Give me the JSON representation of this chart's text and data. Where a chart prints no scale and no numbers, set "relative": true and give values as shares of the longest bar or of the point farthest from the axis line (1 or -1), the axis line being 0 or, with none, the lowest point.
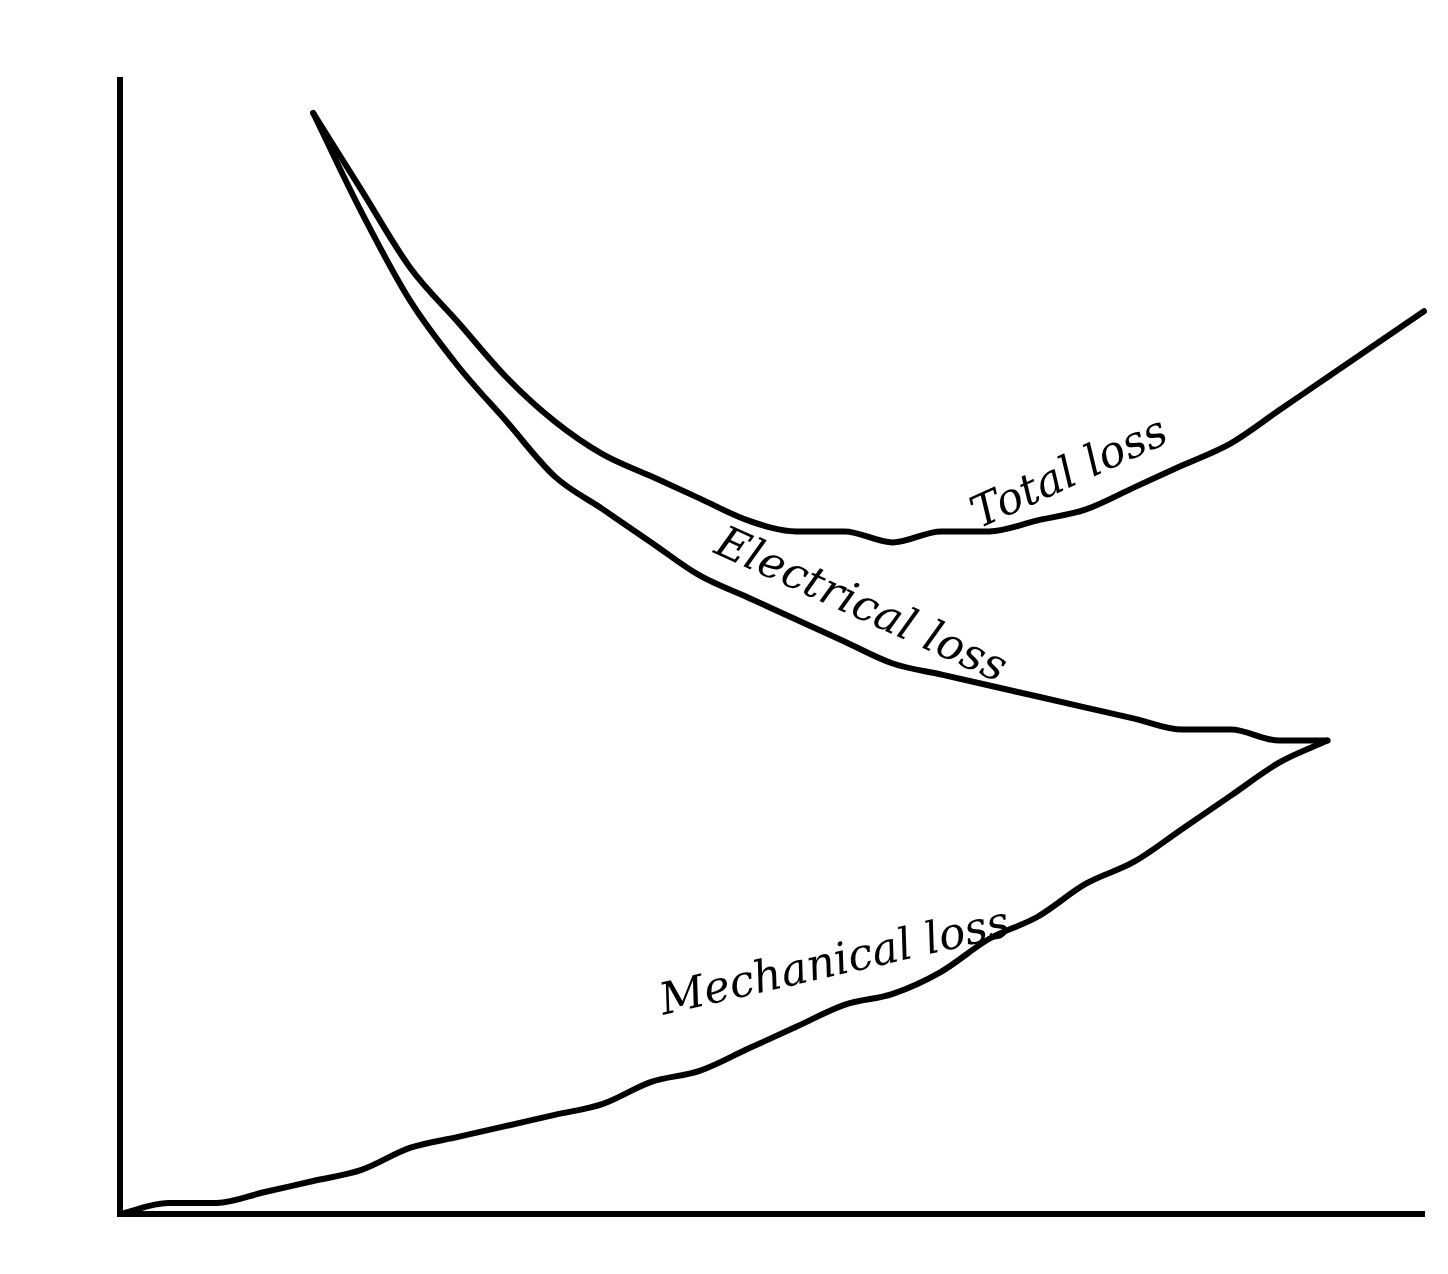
{
  "chart_data": {
    "type": "line",
    "relative": true,
    "grid": false,
    "legend": false,
    "tick_labels": false,
    "marker": "none",
    "line_style": "solid",
    "categories": [
      null,
      null,
      null,
      null,
      null,
      null,
      null,
      null,
      null,
      null,
      null,
      null,
      null,
      null,
      null,
      null,
      null,
      null,
      null,
      null,
      null,
      null,
      null,
      null,
      null,
      null,
      null,
      null
    ],
    "series": [
      {
        "name": "Total loss",
        "color": "#000000",
        "values": [
          null,
          null,
          null,
          null,
          1.0,
          0.93,
          0.86,
          0.81,
          0.76,
          0.72,
          0.69,
          0.67,
          0.65,
          0.63,
          0.62,
          0.62,
          0.61,
          0.62,
          0.62,
          0.63,
          0.64,
          0.66,
          0.68,
          0.7,
          0.73,
          0.76,
          0.79,
          0.82
        ]
      },
      {
        "name": "Electrical loss",
        "color": "#000000",
        "values": [
          null,
          null,
          null,
          null,
          1.0,
          0.91,
          0.83,
          0.77,
          0.72,
          0.67,
          0.64,
          0.61,
          0.58,
          0.56,
          0.54,
          0.52,
          0.5,
          0.49,
          0.48,
          0.47,
          0.46,
          0.45,
          0.44,
          0.44,
          0.43,
          0.43,
          null,
          null
        ]
      },
      {
        "name": "Mechanical loss",
        "color": "#000000",
        "values": [
          0,
          0.01,
          0.01,
          0.02,
          0.03,
          0.04,
          0.06,
          0.07,
          0.08,
          0.09,
          0.1,
          0.12,
          0.13,
          0.15,
          0.17,
          0.19,
          0.2,
          0.22,
          0.25,
          0.27,
          0.3,
          0.32,
          0.35,
          0.38,
          0.41,
          0.43,
          null,
          null
        ]
      }
    ]
  }
}
